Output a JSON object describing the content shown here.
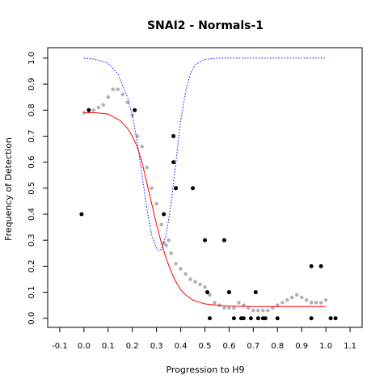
{
  "chart_data": {
    "type": "scatter",
    "title": "SNAI2 - Normals-1",
    "xlabel": "Progression to H9",
    "ylabel": "Frequency of Detection",
    "xlim": [
      -0.15,
      1.15
    ],
    "ylim": [
      -0.035,
      1.04
    ],
    "x_ticks": [
      "-0.1",
      "0.0",
      "0.1",
      "0.2",
      "0.3",
      "0.4",
      "0.5",
      "0.6",
      "0.7",
      "0.8",
      "0.9",
      "1.0",
      "1.1"
    ],
    "y_ticks": [
      "0.0",
      "0.1",
      "0.2",
      "0.3",
      "0.4",
      "0.5",
      "0.6",
      "0.7",
      "0.8",
      "0.9",
      "1.0"
    ],
    "grid": false,
    "legend": "none",
    "series": [
      {
        "kind": "points",
        "color": "#000000",
        "points": [
          [
            -0.01,
            0.4
          ],
          [
            0.02,
            0.8
          ],
          [
            0.21,
            0.8
          ],
          [
            0.33,
            0.4
          ],
          [
            0.37,
            0.7
          ],
          [
            0.37,
            0.6
          ],
          [
            0.38,
            0.5
          ],
          [
            0.45,
            0.5
          ],
          [
            0.5,
            0.3
          ],
          [
            0.51,
            0.1
          ],
          [
            0.52,
            0.0
          ],
          [
            0.58,
            0.3
          ],
          [
            0.6,
            0.1
          ],
          [
            0.62,
            0.0
          ],
          [
            0.65,
            0.0
          ],
          [
            0.66,
            0.0
          ],
          [
            0.69,
            0.0
          ],
          [
            0.71,
            0.1
          ],
          [
            0.72,
            0.0
          ],
          [
            0.74,
            0.0
          ],
          [
            0.75,
            0.0
          ],
          [
            0.8,
            0.0
          ],
          [
            0.94,
            0.2
          ],
          [
            0.94,
            0.0
          ],
          [
            0.98,
            0.2
          ],
          [
            1.02,
            0.0
          ],
          [
            1.04,
            0.0
          ]
        ]
      },
      {
        "kind": "smoothed-points",
        "color": "#b3b3b3",
        "points": [
          [
            0.0,
            0.79
          ],
          [
            0.02,
            0.8
          ],
          [
            0.04,
            0.8
          ],
          [
            0.06,
            0.81
          ],
          [
            0.08,
            0.82
          ],
          [
            0.1,
            0.85
          ],
          [
            0.12,
            0.88
          ],
          [
            0.14,
            0.88
          ],
          [
            0.16,
            0.86
          ],
          [
            0.18,
            0.83
          ],
          [
            0.2,
            0.78
          ],
          [
            0.22,
            0.7
          ],
          [
            0.24,
            0.66
          ],
          [
            0.26,
            0.58
          ],
          [
            0.28,
            0.5
          ],
          [
            0.3,
            0.44
          ],
          [
            0.32,
            0.36
          ],
          [
            0.33,
            0.29
          ],
          [
            0.34,
            0.28
          ],
          [
            0.35,
            0.3
          ],
          [
            0.36,
            0.25
          ],
          [
            0.38,
            0.21
          ],
          [
            0.4,
            0.19
          ],
          [
            0.42,
            0.17
          ],
          [
            0.44,
            0.15
          ],
          [
            0.46,
            0.14
          ],
          [
            0.48,
            0.13
          ],
          [
            0.5,
            0.12
          ],
          [
            0.52,
            0.09
          ],
          [
            0.54,
            0.06
          ],
          [
            0.56,
            0.05
          ],
          [
            0.58,
            0.04
          ],
          [
            0.6,
            0.04
          ],
          [
            0.62,
            0.04
          ],
          [
            0.64,
            0.06
          ],
          [
            0.66,
            0.05
          ],
          [
            0.68,
            0.04
          ],
          [
            0.7,
            0.03
          ],
          [
            0.72,
            0.03
          ],
          [
            0.74,
            0.03
          ],
          [
            0.76,
            0.03
          ],
          [
            0.78,
            0.04
          ],
          [
            0.8,
            0.05
          ],
          [
            0.82,
            0.06
          ],
          [
            0.84,
            0.07
          ],
          [
            0.86,
            0.08
          ],
          [
            0.88,
            0.09
          ],
          [
            0.9,
            0.08
          ],
          [
            0.92,
            0.07
          ],
          [
            0.94,
            0.06
          ],
          [
            0.96,
            0.06
          ],
          [
            0.98,
            0.06
          ],
          [
            1.0,
            0.07
          ]
        ]
      },
      {
        "kind": "fitted-curve",
        "color": "#ff0000",
        "style": "solid",
        "points": [
          [
            0.0,
            0.79
          ],
          [
            0.05,
            0.79
          ],
          [
            0.1,
            0.785
          ],
          [
            0.15,
            0.76
          ],
          [
            0.18,
            0.73
          ],
          [
            0.2,
            0.7
          ],
          [
            0.22,
            0.66
          ],
          [
            0.24,
            0.6
          ],
          [
            0.26,
            0.52
          ],
          [
            0.28,
            0.44
          ],
          [
            0.3,
            0.36
          ],
          [
            0.32,
            0.29
          ],
          [
            0.34,
            0.23
          ],
          [
            0.36,
            0.18
          ],
          [
            0.38,
            0.14
          ],
          [
            0.4,
            0.11
          ],
          [
            0.42,
            0.09
          ],
          [
            0.45,
            0.07
          ],
          [
            0.5,
            0.055
          ],
          [
            0.55,
            0.05
          ],
          [
            0.6,
            0.047
          ],
          [
            0.7,
            0.045
          ],
          [
            0.8,
            0.045
          ],
          [
            0.9,
            0.045
          ],
          [
            1.0,
            0.045
          ]
        ]
      },
      {
        "kind": "reference-curve",
        "color": "#0000ff",
        "style": "dotted",
        "points": [
          [
            0.0,
            1.0
          ],
          [
            0.05,
            0.995
          ],
          [
            0.1,
            0.98
          ],
          [
            0.14,
            0.94
          ],
          [
            0.18,
            0.85
          ],
          [
            0.2,
            0.78
          ],
          [
            0.22,
            0.68
          ],
          [
            0.24,
            0.55
          ],
          [
            0.26,
            0.42
          ],
          [
            0.28,
            0.32
          ],
          [
            0.3,
            0.27
          ],
          [
            0.31,
            0.26
          ],
          [
            0.32,
            0.265
          ],
          [
            0.34,
            0.32
          ],
          [
            0.36,
            0.44
          ],
          [
            0.38,
            0.6
          ],
          [
            0.4,
            0.76
          ],
          [
            0.42,
            0.87
          ],
          [
            0.44,
            0.94
          ],
          [
            0.46,
            0.975
          ],
          [
            0.5,
            0.995
          ],
          [
            0.55,
            1.0
          ],
          [
            0.6,
            1.0
          ],
          [
            0.8,
            1.0
          ],
          [
            1.0,
            1.0
          ]
        ]
      }
    ]
  }
}
